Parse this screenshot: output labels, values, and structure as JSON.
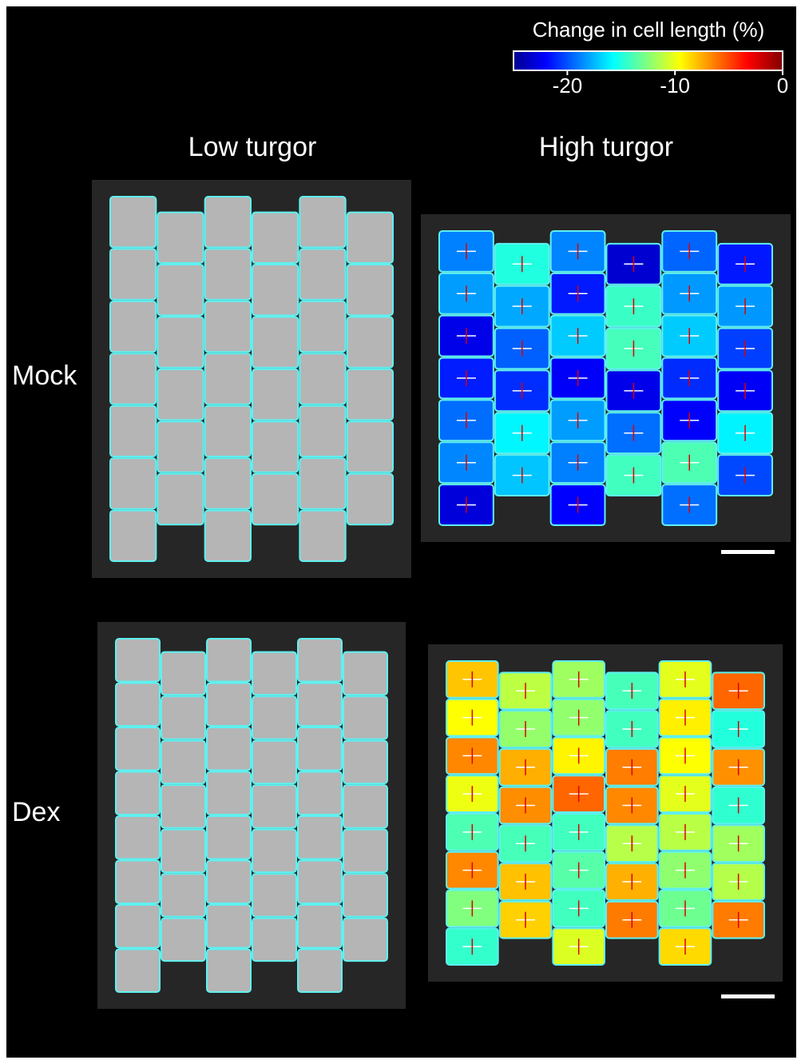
{
  "colorbar": {
    "title": "Change in cell length (%)",
    "lim": [
      -25,
      0
    ],
    "ticks": [
      -20,
      -10,
      0
    ]
  },
  "columns": [
    "Low turgor",
    "High turgor"
  ],
  "rows": [
    "Mock",
    "Dex"
  ]
}
